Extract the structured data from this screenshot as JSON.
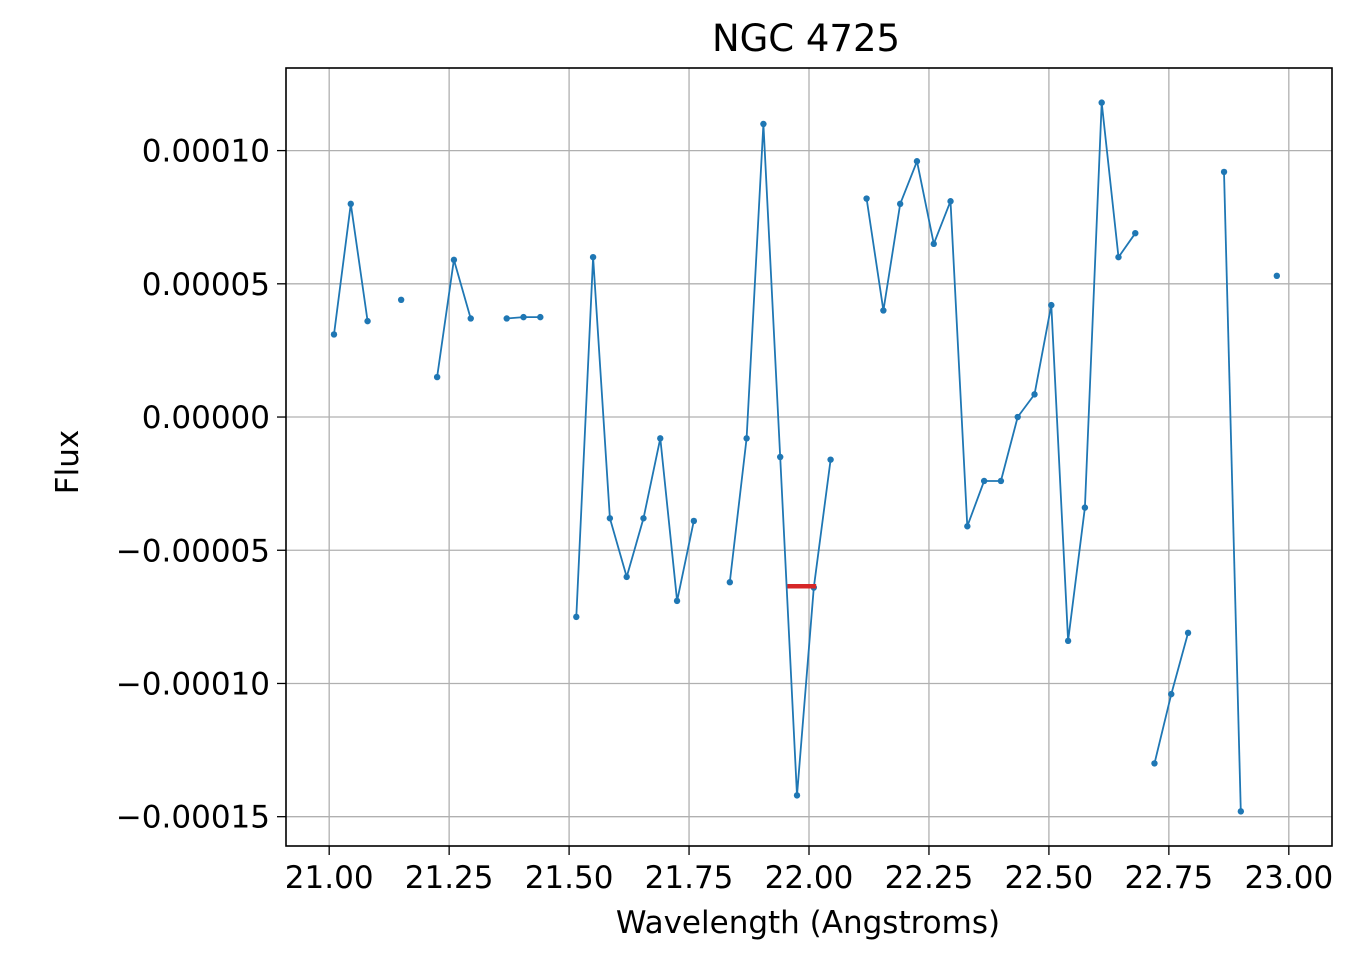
{
  "chart_data": {
    "type": "line",
    "title": "NGC 4725",
    "xlabel": "Wavelength (Angstroms)",
    "ylabel": "Flux",
    "xlim": [
      20.91,
      23.09
    ],
    "ylim": [
      -0.000161,
      0.000131
    ],
    "grid": true,
    "x_ticks": [
      21.0,
      21.25,
      21.5,
      21.75,
      22.0,
      22.25,
      22.5,
      22.75,
      23.0
    ],
    "x_tick_labels": [
      "21.00",
      "21.25",
      "21.50",
      "21.75",
      "22.00",
      "22.25",
      "22.50",
      "22.75",
      "23.00"
    ],
    "y_ticks": [
      -0.00015,
      -0.0001,
      -5e-05,
      0.0,
      5e-05,
      0.0001
    ],
    "y_tick_labels": [
      "−0.00015",
      "−0.00010",
      "−0.00005",
      "0.00000",
      "0.00005",
      "0.00010"
    ],
    "series": [
      {
        "color": "#1f77b4",
        "segments": [
          [
            [
              21.01,
              3.1e-05
            ],
            [
              21.045,
              8e-05
            ],
            [
              21.08,
              3.6e-05
            ]
          ],
          [
            [
              21.15,
              4.4e-05
            ]
          ],
          [
            [
              21.225,
              1.5e-05
            ],
            [
              21.26,
              5.9e-05
            ],
            [
              21.295,
              3.7e-05
            ]
          ],
          [
            [
              21.37,
              3.7e-05
            ],
            [
              21.405,
              3.75e-05
            ],
            [
              21.44,
              3.75e-05
            ]
          ],
          [
            [
              21.515,
              -7.5e-05
            ],
            [
              21.55,
              6e-05
            ],
            [
              21.585,
              -3.8e-05
            ],
            [
              21.62,
              -6e-05
            ],
            [
              21.655,
              -3.8e-05
            ],
            [
              21.69,
              -8e-06
            ],
            [
              21.725,
              -6.9e-05
            ],
            [
              21.76,
              -3.9e-05
            ]
          ],
          [
            [
              21.835,
              -6.2e-05
            ],
            [
              21.87,
              -8e-06
            ],
            [
              21.905,
              0.00011
            ],
            [
              21.94,
              -1.5e-05
            ],
            [
              21.975,
              -0.000142
            ],
            [
              22.01,
              -6.4e-05
            ],
            [
              22.045,
              -1.6e-05
            ]
          ],
          [
            [
              22.12,
              8.2e-05
            ],
            [
              22.155,
              4e-05
            ],
            [
              22.19,
              8e-05
            ],
            [
              22.225,
              9.6e-05
            ],
            [
              22.26,
              6.5e-05
            ],
            [
              22.295,
              8.1e-05
            ],
            [
              22.33,
              -4.1e-05
            ],
            [
              22.365,
              -2.4e-05
            ],
            [
              22.4,
              -2.4e-05
            ],
            [
              22.435,
              0.0
            ],
            [
              22.47,
              8.5e-06
            ],
            [
              22.505,
              4.2e-05
            ],
            [
              22.54,
              -8.4e-05
            ],
            [
              22.575,
              -3.4e-05
            ],
            [
              22.61,
              0.000118
            ],
            [
              22.645,
              6e-05
            ],
            [
              22.68,
              6.9e-05
            ]
          ],
          [
            [
              22.72,
              -0.00013
            ],
            [
              22.755,
              -0.000104
            ],
            [
              22.79,
              -8.1e-05
            ]
          ],
          [
            [
              22.865,
              9.2e-05
            ],
            [
              22.9,
              -0.000148
            ]
          ],
          [
            [
              22.975,
              5.3e-05
            ]
          ]
        ]
      }
    ],
    "highlight": {
      "color": "#d62728",
      "x_range": [
        21.955,
        22.015
      ],
      "y": -6.35e-05
    }
  }
}
